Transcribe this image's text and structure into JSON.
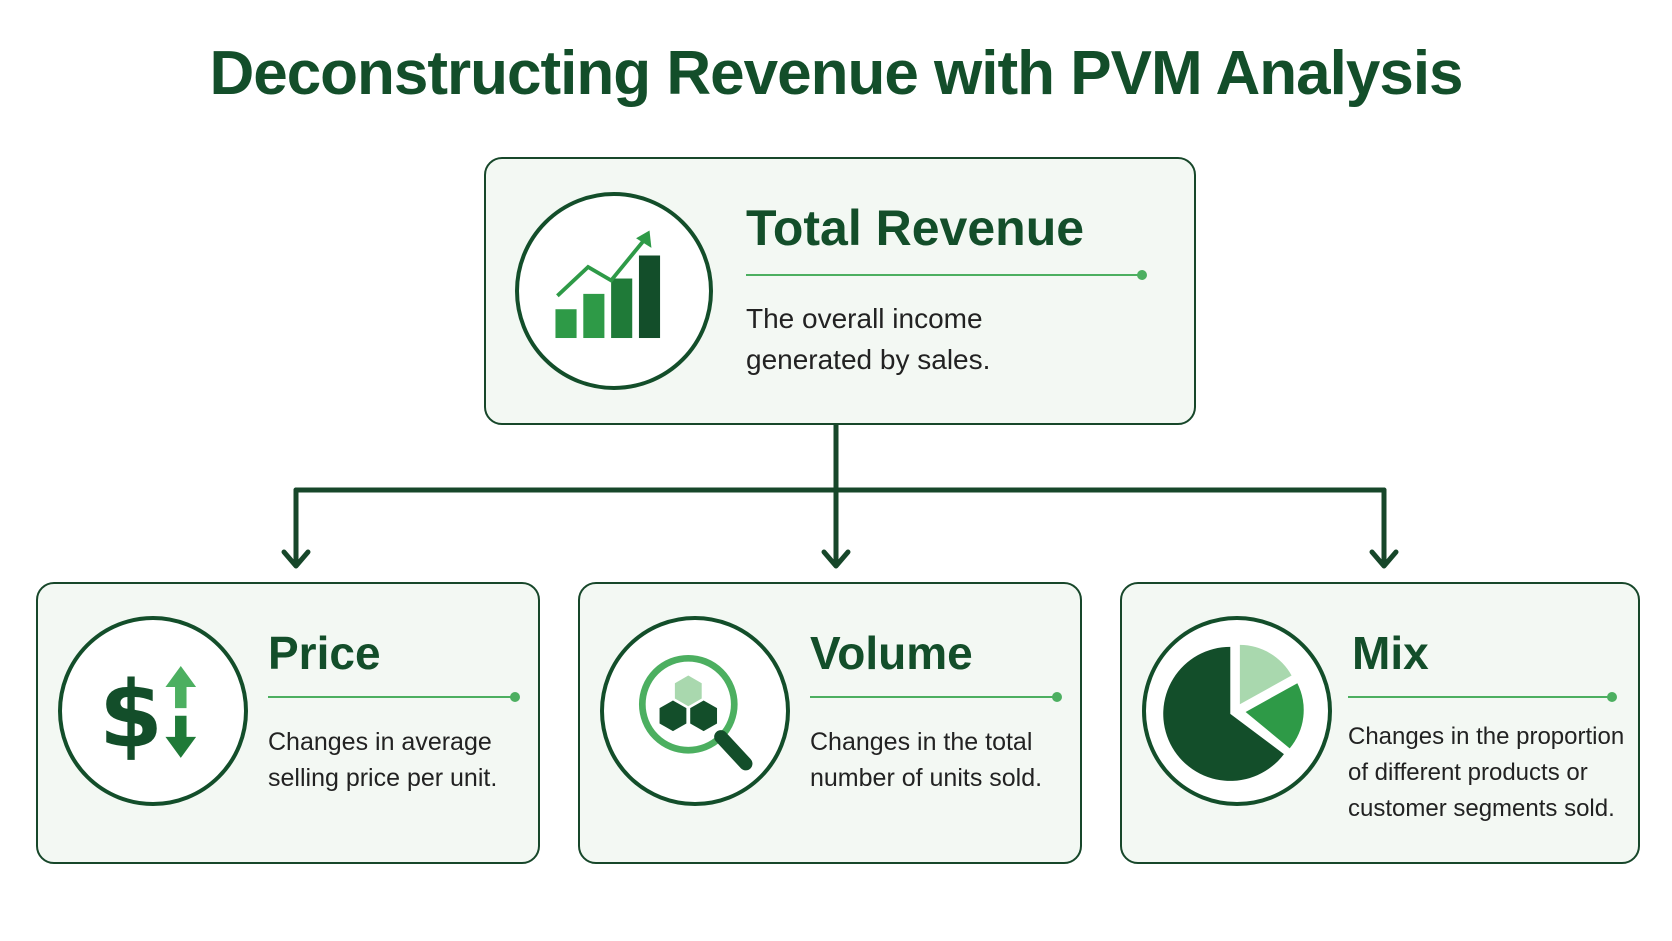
{
  "title": "Deconstructing Revenue with PVM Analysis",
  "root": {
    "title": "Total Revenue",
    "description": "The overall income generated by sales.",
    "icon": "bar-chart-growth-icon"
  },
  "children": [
    {
      "title": "Price",
      "description": "Changes in average selling price per unit.",
      "icon": "dollar-arrows-icon"
    },
    {
      "title": "Volume",
      "description": "Changes in the total number of units sold.",
      "icon": "magnifier-boxes-icon"
    },
    {
      "title": "Mix",
      "description": "Changes in the proportion of different products or customer segments sold.",
      "icon": "pie-chart-icon"
    }
  ],
  "colors": {
    "dark_green": "#134e2a",
    "mid_green": "#2e9a47",
    "light_green": "#4caf60",
    "pale_green": "#a9d8ae",
    "card_bg": "#f3f8f3"
  }
}
